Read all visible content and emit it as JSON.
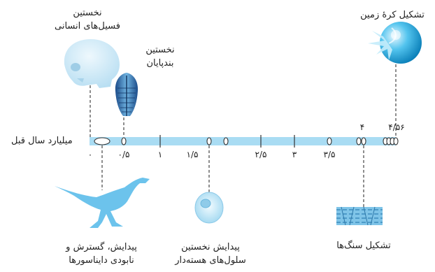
{
  "axis": {
    "unit_label": "میلیارد سال قبل",
    "ticks": [
      {
        "label": "۰",
        "value": 0
      },
      {
        "label": "۰/۵",
        "value": 0.5
      },
      {
        "label": "۱",
        "value": 1
      },
      {
        "label": "۱/۵",
        "value": 1.5
      },
      {
        "label": "۲/۵",
        "value": 2.5
      },
      {
        "label": "۳",
        "value": 3
      },
      {
        "label": "۳/۵",
        "value": 3.5
      }
    ],
    "top_ticks": [
      {
        "label": "۴",
        "value": 4
      },
      {
        "label": "۴/۵۶",
        "value": 4.56
      }
    ]
  },
  "events": {
    "earth_formation": {
      "label": "تشکیل کرهٔ زمین"
    },
    "first_human_fossils": {
      "line1": "نخستین",
      "line2": "فسیل‌های انسانی"
    },
    "first_arthropods": {
      "line1": "نخستین",
      "line2": "بندپایان"
    },
    "dinosaurs": {
      "line1": "پیدایش، گسترش و",
      "line2": "نابودی دایناسورها"
    },
    "first_eukaryotes": {
      "line1": "پیدایش نخستین",
      "line2": "سلول‌های هسته‌دار"
    },
    "rock_formation": {
      "label": "تشکیل سنگ‌ها"
    }
  },
  "colors": {
    "timeline_bar": "#a9dcf3",
    "connector": "#333333"
  }
}
